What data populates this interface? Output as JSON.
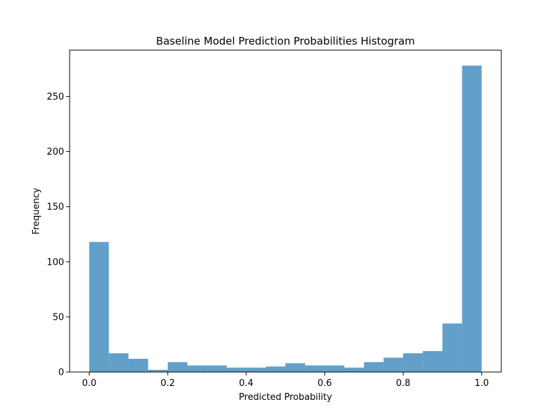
{
  "chart_data": {
    "type": "bar",
    "title": "Baseline Model Prediction Probabilities Histogram",
    "xlabel": "Predicted Probability",
    "ylabel": "Frequency",
    "bin_edges": [
      0.0,
      0.05,
      0.1,
      0.15,
      0.2,
      0.25,
      0.3,
      0.35,
      0.4,
      0.45,
      0.5,
      0.55,
      0.6,
      0.65,
      0.7,
      0.75,
      0.8,
      0.85,
      0.9,
      0.95,
      1.0
    ],
    "values": [
      118,
      17,
      12,
      2,
      9,
      6,
      6,
      4,
      4,
      5,
      8,
      6,
      6,
      4,
      9,
      13,
      17,
      19,
      44,
      278
    ],
    "xlim": [
      -0.05,
      1.05
    ],
    "ylim": [
      0,
      292
    ],
    "xticks": [
      0.0,
      0.2,
      0.4,
      0.6,
      0.8,
      1.0
    ],
    "xtick_labels": [
      "0.0",
      "0.2",
      "0.4",
      "0.6",
      "0.8",
      "1.0"
    ],
    "yticks": [
      0,
      50,
      100,
      150,
      200,
      250
    ],
    "ytick_labels": [
      "0",
      "50",
      "100",
      "150",
      "200",
      "250"
    ],
    "bar_color": "#1f77b4",
    "bar_opacity": 0.7,
    "grid": false,
    "legend": "none"
  }
}
